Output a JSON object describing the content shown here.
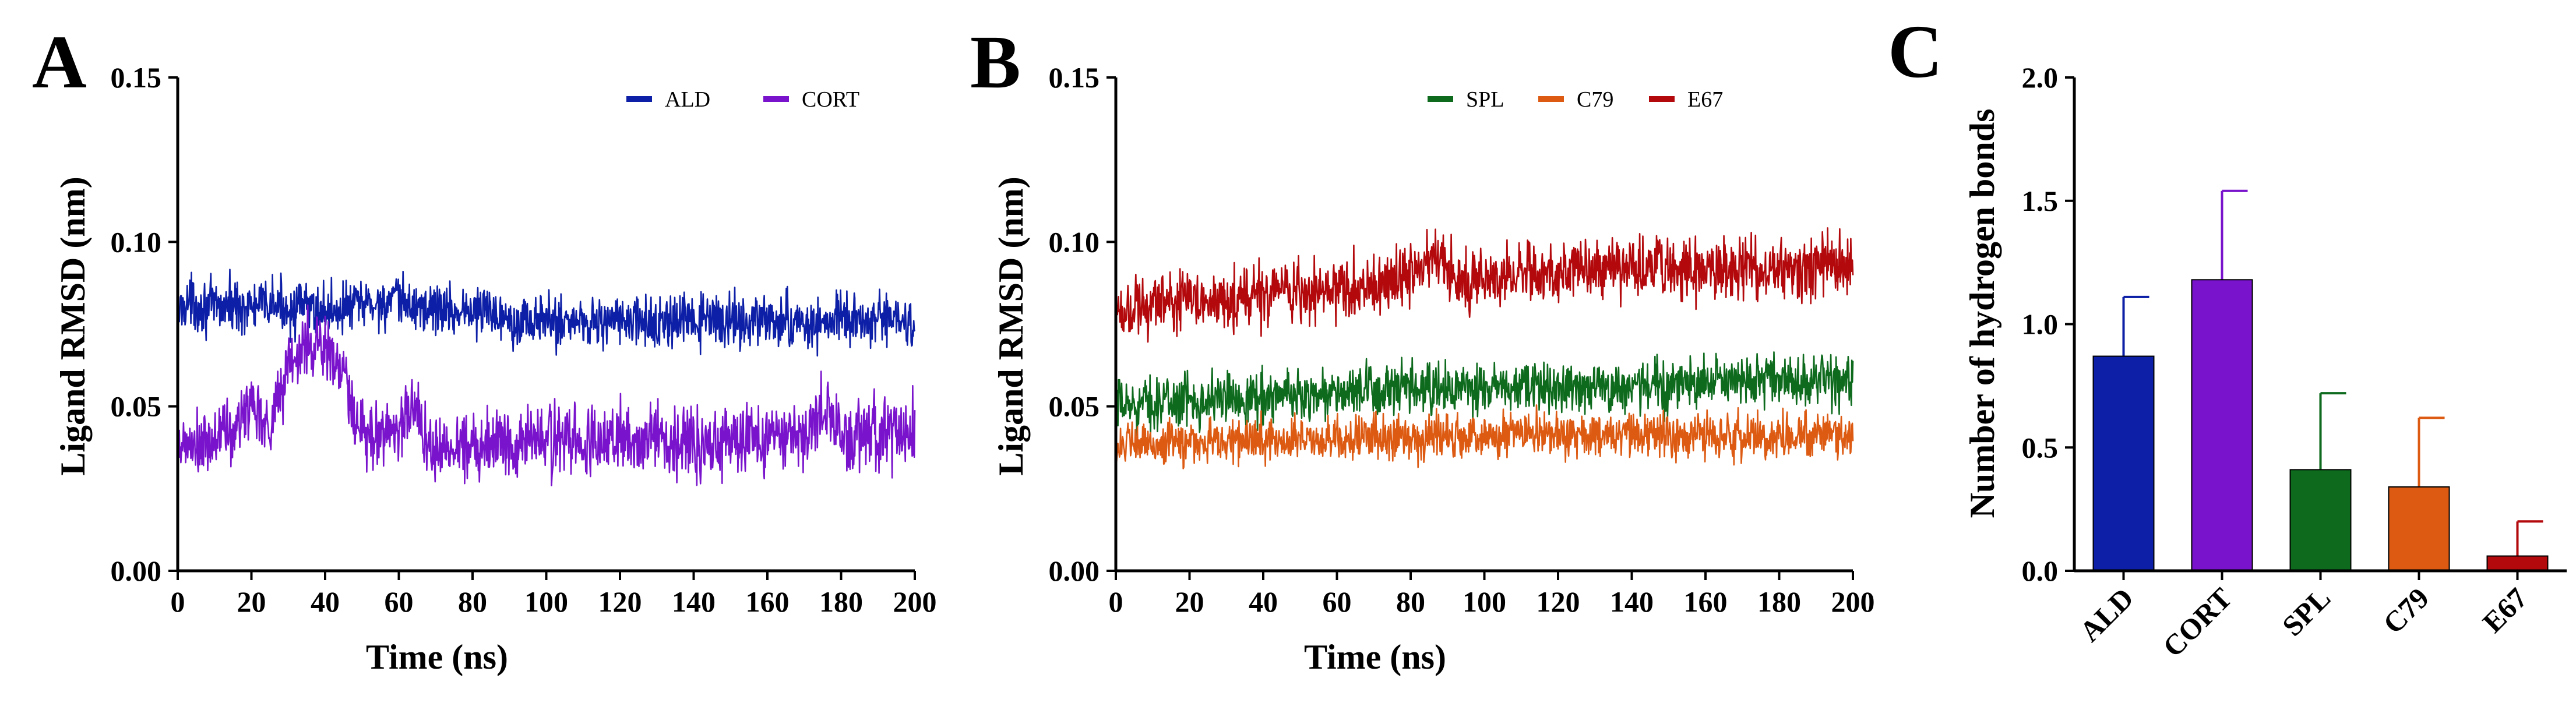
{
  "panels": {
    "a": "A",
    "b": "B",
    "c": "C"
  },
  "colors": {
    "ALD": "#0d1fa6",
    "CORT": "#7a14cc",
    "SPL": "#0e6b1e",
    "C79": "#dd5a12",
    "E67": "#b3090c"
  },
  "chart_data": [
    {
      "type": "line",
      "panel": "A",
      "title": "",
      "xlabel": "Time (ns)",
      "ylabel": "Ligand RMSD (nm)",
      "xlim": [
        0,
        200
      ],
      "ylim": [
        0,
        0.15
      ],
      "xticks": [
        "0",
        "20",
        "40",
        "60",
        "80",
        "100",
        "120",
        "140",
        "160",
        "180",
        "200"
      ],
      "yticks": [
        "0.00",
        "0.05",
        "0.10",
        "0.15"
      ],
      "legend_position": "top-right",
      "series": [
        {
          "name": "ALD",
          "x": [
            0,
            2,
            5,
            10,
            15,
            20,
            25,
            30,
            35,
            40,
            45,
            50,
            55,
            60,
            65,
            70,
            75,
            80,
            85,
            90,
            95,
            100,
            110,
            120,
            130,
            140,
            150,
            160,
            170,
            180,
            190,
            200
          ],
          "y": [
            0.078,
            0.082,
            0.081,
            0.08,
            0.081,
            0.08,
            0.081,
            0.08,
            0.08,
            0.079,
            0.08,
            0.081,
            0.081,
            0.082,
            0.08,
            0.08,
            0.079,
            0.079,
            0.079,
            0.077,
            0.076,
            0.076,
            0.076,
            0.076,
            0.075,
            0.076,
            0.076,
            0.076,
            0.075,
            0.076,
            0.076,
            0.076
          ],
          "spread": 0.006
        },
        {
          "name": "CORT",
          "x": [
            0,
            2,
            5,
            10,
            12,
            15,
            18,
            20,
            25,
            28,
            30,
            33,
            35,
            38,
            40,
            42,
            45,
            48,
            50,
            55,
            60,
            65,
            68,
            70,
            75,
            80,
            90,
            100,
            110,
            120,
            130,
            140,
            150,
            160,
            170,
            175,
            180,
            190,
            200
          ],
          "y": [
            0.035,
            0.038,
            0.037,
            0.038,
            0.045,
            0.04,
            0.048,
            0.052,
            0.044,
            0.055,
            0.063,
            0.066,
            0.068,
            0.07,
            0.068,
            0.064,
            0.06,
            0.045,
            0.04,
            0.042,
            0.044,
            0.05,
            0.038,
            0.036,
            0.038,
            0.039,
            0.04,
            0.04,
            0.039,
            0.04,
            0.04,
            0.039,
            0.04,
            0.04,
            0.042,
            0.048,
            0.043,
            0.042,
            0.042
          ],
          "spread": 0.008
        }
      ]
    },
    {
      "type": "line",
      "panel": "B",
      "title": "",
      "xlabel": "Time (ns)",
      "ylabel": "Ligand RMSD (nm)",
      "xlim": [
        0,
        200
      ],
      "ylim": [
        0,
        0.15
      ],
      "xticks": [
        "0",
        "20",
        "40",
        "60",
        "80",
        "100",
        "120",
        "140",
        "160",
        "180",
        "200"
      ],
      "yticks": [
        "0.00",
        "0.05",
        "0.10",
        "0.15"
      ],
      "legend_position": "top-right",
      "series": [
        {
          "name": "SPL",
          "x": [
            0,
            10,
            20,
            40,
            60,
            80,
            100,
            120,
            140,
            160,
            180,
            200
          ],
          "y": [
            0.05,
            0.051,
            0.052,
            0.053,
            0.054,
            0.055,
            0.055,
            0.056,
            0.056,
            0.057,
            0.058,
            0.058
          ],
          "spread": 0.006
        },
        {
          "name": "C79",
          "x": [
            0,
            20,
            40,
            60,
            80,
            100,
            120,
            140,
            160,
            180,
            200
          ],
          "y": [
            0.038,
            0.039,
            0.04,
            0.04,
            0.041,
            0.041,
            0.041,
            0.041,
            0.041,
            0.041,
            0.041
          ],
          "spread": 0.005
        },
        {
          "name": "E67",
          "x": [
            0,
            10,
            20,
            30,
            40,
            50,
            60,
            70,
            80,
            85,
            88,
            90,
            95,
            100,
            110,
            120,
            140,
            160,
            180,
            200
          ],
          "y": [
            0.08,
            0.081,
            0.082,
            0.083,
            0.083,
            0.084,
            0.085,
            0.087,
            0.09,
            0.094,
            0.098,
            0.091,
            0.088,
            0.09,
            0.091,
            0.091,
            0.092,
            0.092,
            0.093,
            0.092
          ],
          "spread": 0.007
        }
      ]
    },
    {
      "type": "bar",
      "panel": "C",
      "title": "",
      "xlabel": "",
      "ylabel": "Number of hydrogen bonds",
      "ylim": [
        0,
        2.0
      ],
      "yticks": [
        "0.0",
        "0.5",
        "1.0",
        "1.5",
        "2.0"
      ],
      "categories": [
        "ALD",
        "CORT",
        "SPL",
        "C79",
        "E67"
      ],
      "values": [
        0.87,
        1.18,
        0.41,
        0.34,
        0.06
      ],
      "errors": [
        0.24,
        0.36,
        0.31,
        0.28,
        0.14
      ]
    }
  ]
}
